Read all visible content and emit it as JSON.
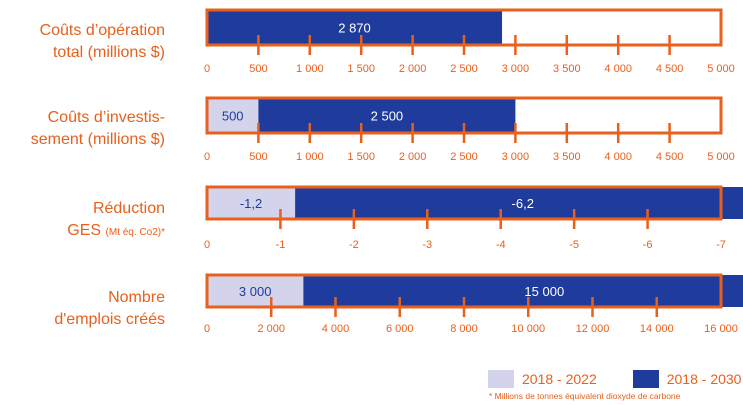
{
  "colors": {
    "accent": "#e8601c",
    "period1": "#d3d3eb",
    "period2": "#1f3b9b"
  },
  "chart_data": [
    {
      "type": "bar",
      "stacked": true,
      "orientation": "horizontal",
      "label_lines": [
        "Coûts d’opération",
        "total (millions $)"
      ],
      "xlim": [
        0,
        5000
      ],
      "ticks": [
        "0",
        "500",
        "1 000",
        "1 500",
        "2 000",
        "2 500",
        "3 000",
        "3 500",
        "4 000",
        "4 500",
        "5 000"
      ],
      "tick_values": [
        0,
        500,
        1000,
        1500,
        2000,
        2500,
        3000,
        3500,
        4000,
        4500,
        5000
      ],
      "series": [
        {
          "name": "2018 - 2030",
          "value": 2870,
          "label": "2 870",
          "start": 0
        }
      ]
    },
    {
      "type": "bar",
      "stacked": true,
      "orientation": "horizontal",
      "label_lines": [
        "Coûts d’investis-",
        "sement (millions $)"
      ],
      "xlim": [
        0,
        5000
      ],
      "ticks": [
        "0",
        "500",
        "1 000",
        "1 500",
        "2 000",
        "2 500",
        "3 000",
        "3 500",
        "4 000",
        "4 500",
        "5 000"
      ],
      "tick_values": [
        0,
        500,
        1000,
        1500,
        2000,
        2500,
        3000,
        3500,
        4000,
        4500,
        5000
      ],
      "series": [
        {
          "name": "2018 - 2022",
          "value": 500,
          "label": "500",
          "start": 0
        },
        {
          "name": "2018 - 2030",
          "value": 2500,
          "label": "2 500",
          "start": 500
        }
      ]
    },
    {
      "type": "bar",
      "stacked": true,
      "orientation": "horizontal",
      "label_lines": [
        "Réduction",
        "GES"
      ],
      "label_small": "(Mt éq. Co2)*",
      "xlim": [
        0,
        -7
      ],
      "ticks": [
        "0",
        "-1",
        "-2",
        "-3",
        "-4",
        "-5",
        "-6",
        "-7"
      ],
      "tick_values": [
        0,
        -1,
        -2,
        -3,
        -4,
        -5,
        -6,
        -7
      ],
      "series": [
        {
          "name": "2018 - 2022",
          "value": -1.2,
          "label": "-1,2",
          "start": 0
        },
        {
          "name": "2018 - 2030",
          "value": -6.2,
          "label": "-6,2",
          "start": -1.2
        }
      ]
    },
    {
      "type": "bar",
      "stacked": true,
      "orientation": "horizontal",
      "label_lines": [
        "Nombre",
        "d'emplois créés"
      ],
      "xlim": [
        0,
        16000
      ],
      "ticks": [
        "0",
        "2 000",
        "4 000",
        "6 000",
        "8 000",
        "10 000",
        "12 000",
        "14 000",
        "16 000"
      ],
      "tick_values": [
        0,
        2000,
        4000,
        6000,
        8000,
        10000,
        12000,
        14000,
        16000
      ],
      "series": [
        {
          "name": "2018 - 2022",
          "value": 3000,
          "label": "3 000",
          "start": 0
        },
        {
          "name": "2018 - 2030",
          "value": 15000,
          "label": "15 000",
          "start": 3000
        }
      ]
    }
  ],
  "legend": [
    {
      "label": "2018 - 2022",
      "color": "#d3d3eb"
    },
    {
      "label": "2018 - 2030",
      "color": "#1f3b9b"
    }
  ],
  "footnote": "* Millions de tonnes équivalent dioxyde de carbone"
}
